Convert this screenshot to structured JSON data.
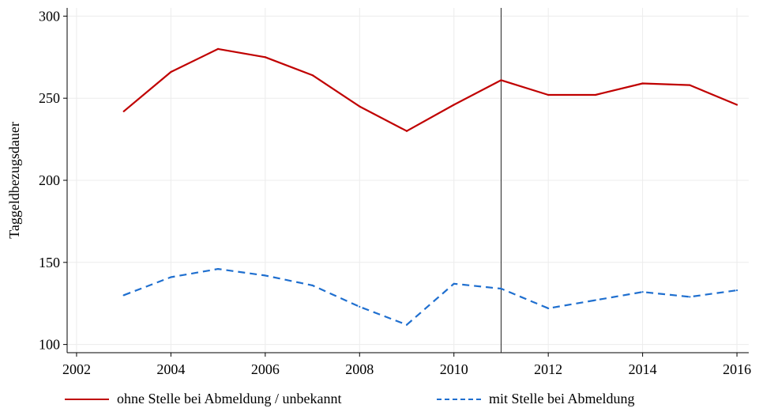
{
  "chart_data": {
    "type": "line",
    "xlim": [
      2001.8,
      2016.25
    ],
    "ylim": [
      95,
      305
    ],
    "x_ticks": [
      2002,
      2004,
      2006,
      2008,
      2010,
      2012,
      2014,
      2016
    ],
    "y_ticks": [
      100,
      150,
      200,
      250,
      300
    ],
    "ylabel": "Taggeldbezugsdauer",
    "xlabel": "",
    "grid": true,
    "vline_x": 2011,
    "legend_position": "bottom",
    "series": [
      {
        "name": "ohne Stelle bei Abmeldung / unbekannt",
        "color": "#c00000",
        "dash": "solid",
        "x": [
          2003,
          2004,
          2005,
          2006,
          2007,
          2008,
          2009,
          2010,
          2011,
          2012,
          2013,
          2014,
          2015,
          2016
        ],
        "values": [
          242,
          266,
          280,
          275,
          264,
          245,
          230,
          246,
          261,
          252,
          252,
          259,
          258,
          246
        ]
      },
      {
        "name": "mit Stelle bei Abmeldung",
        "color": "#1f6fcf",
        "dash": "dashed",
        "x": [
          2003,
          2004,
          2005,
          2006,
          2007,
          2008,
          2009,
          2010,
          2011,
          2012,
          2013,
          2014,
          2015,
          2016
        ],
        "values": [
          130,
          141,
          146,
          142,
          136,
          123,
          112,
          137,
          134,
          122,
          127,
          132,
          129,
          133
        ]
      }
    ]
  }
}
